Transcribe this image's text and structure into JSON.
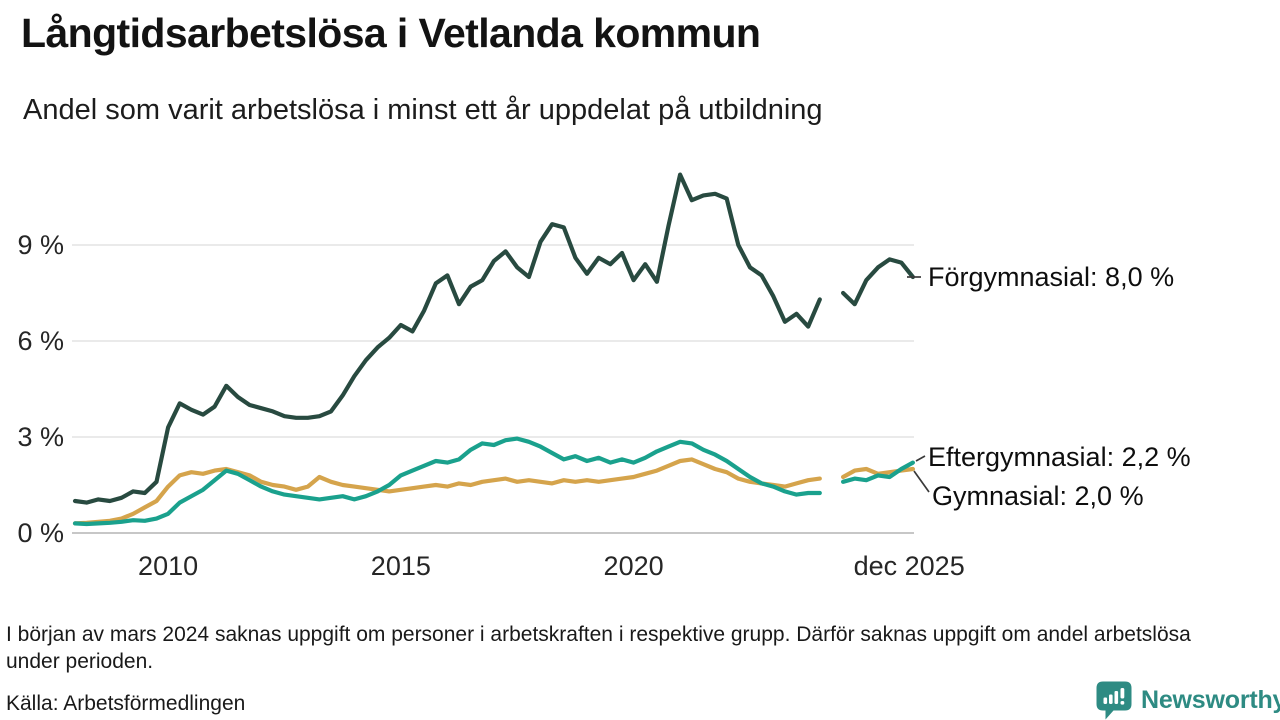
{
  "header": {
    "title": "Långtidsarbetslösa i Vetlanda kommun",
    "subtitle": "Andel som varit arbetslösa i minst ett år uppdelat på utbildning"
  },
  "chart_data": {
    "type": "line",
    "title": "Långtidsarbetslösa i Vetlanda kommun",
    "subtitle": "Andel som varit arbetslösa i minst ett år uppdelat på utbildning",
    "unit": "%",
    "x_start": 2008.0,
    "x_step": 0.25,
    "x_axis": {
      "ticks": [
        {
          "value": 2010,
          "label": "2010"
        },
        {
          "value": 2015,
          "label": "2015"
        },
        {
          "value": 2020,
          "label": "2020"
        },
        {
          "value": 2025.92,
          "label": "dec 2025"
        }
      ]
    },
    "y_axis": {
      "range": [
        0,
        11.5
      ],
      "ticks": [
        {
          "value": 0,
          "label": "0 %"
        },
        {
          "value": 3,
          "label": "3 %"
        },
        {
          "value": 6,
          "label": "6 %"
        },
        {
          "value": 9,
          "label": "9 %"
        }
      ]
    },
    "data_gap": "2024.25 (värden saknas)",
    "series": [
      {
        "name": "Förgymnasial",
        "color": "#284a40",
        "end_value": "8,0 %",
        "end_label": "Förgymnasial: 8,0 %",
        "values": [
          1.0,
          0.95,
          1.05,
          1.0,
          1.1,
          1.3,
          1.25,
          1.6,
          3.3,
          4.05,
          3.85,
          3.7,
          3.95,
          4.6,
          4.25,
          4.0,
          3.9,
          3.8,
          3.65,
          3.6,
          3.6,
          3.65,
          3.8,
          4.3,
          4.9,
          5.4,
          5.8,
          6.1,
          6.5,
          6.3,
          6.95,
          7.8,
          8.05,
          7.15,
          7.7,
          7.9,
          8.5,
          8.8,
          8.3,
          8.0,
          9.1,
          9.65,
          9.55,
          8.6,
          8.1,
          8.6,
          8.4,
          8.75,
          7.9,
          8.4,
          7.85,
          9.6,
          11.2,
          10.4,
          10.55,
          10.6,
          10.45,
          9.0,
          8.3,
          8.05,
          7.4,
          6.6,
          6.85,
          6.45,
          7.3,
          null,
          7.5,
          7.15,
          7.9,
          8.3,
          8.55,
          8.45,
          8.0
        ]
      },
      {
        "name": "Gymnasial",
        "color": "#d5a44c",
        "end_value": "2,0 %",
        "end_label": "Gymnasial: 2,0 %",
        "values": [
          0.3,
          0.32,
          0.35,
          0.38,
          0.45,
          0.6,
          0.8,
          1.0,
          1.45,
          1.8,
          1.9,
          1.85,
          1.95,
          2.0,
          1.9,
          1.8,
          1.6,
          1.5,
          1.45,
          1.35,
          1.45,
          1.75,
          1.6,
          1.5,
          1.45,
          1.4,
          1.35,
          1.3,
          1.35,
          1.4,
          1.45,
          1.5,
          1.45,
          1.55,
          1.5,
          1.6,
          1.65,
          1.7,
          1.6,
          1.65,
          1.6,
          1.55,
          1.65,
          1.6,
          1.65,
          1.6,
          1.65,
          1.7,
          1.75,
          1.85,
          1.95,
          2.1,
          2.25,
          2.3,
          2.15,
          2.0,
          1.9,
          1.7,
          1.6,
          1.55,
          1.5,
          1.45,
          1.55,
          1.65,
          1.7,
          null,
          1.75,
          1.95,
          2.0,
          1.85,
          1.9,
          1.95,
          2.0
        ]
      },
      {
        "name": "Eftergymnasial",
        "color": "#1aa18d",
        "end_value": "2,2 %",
        "end_label": "Eftergymnasial: 2,2 %",
        "values": [
          0.3,
          0.28,
          0.3,
          0.32,
          0.35,
          0.4,
          0.38,
          0.45,
          0.6,
          0.95,
          1.15,
          1.35,
          1.65,
          1.95,
          1.85,
          1.65,
          1.45,
          1.3,
          1.2,
          1.15,
          1.1,
          1.05,
          1.1,
          1.15,
          1.05,
          1.15,
          1.3,
          1.5,
          1.8,
          1.95,
          2.1,
          2.25,
          2.2,
          2.3,
          2.6,
          2.8,
          2.75,
          2.9,
          2.95,
          2.85,
          2.7,
          2.5,
          2.3,
          2.4,
          2.25,
          2.35,
          2.2,
          2.3,
          2.2,
          2.35,
          2.55,
          2.7,
          2.85,
          2.8,
          2.6,
          2.45,
          2.25,
          2.0,
          1.75,
          1.55,
          1.45,
          1.3,
          1.2,
          1.25,
          1.25,
          null,
          1.6,
          1.7,
          1.65,
          1.8,
          1.75,
          2.0,
          2.2
        ]
      }
    ]
  },
  "footer": {
    "note": "I början av mars 2024 saknas uppgift om personer i arbetskraften i respektive grupp. Därför saknas uppgift om andel arbetslösa under perioden.",
    "source": "Källa: Arbetsförmedlingen"
  },
  "branding": {
    "name": "Newsworthy",
    "color": "#2e8b83"
  }
}
